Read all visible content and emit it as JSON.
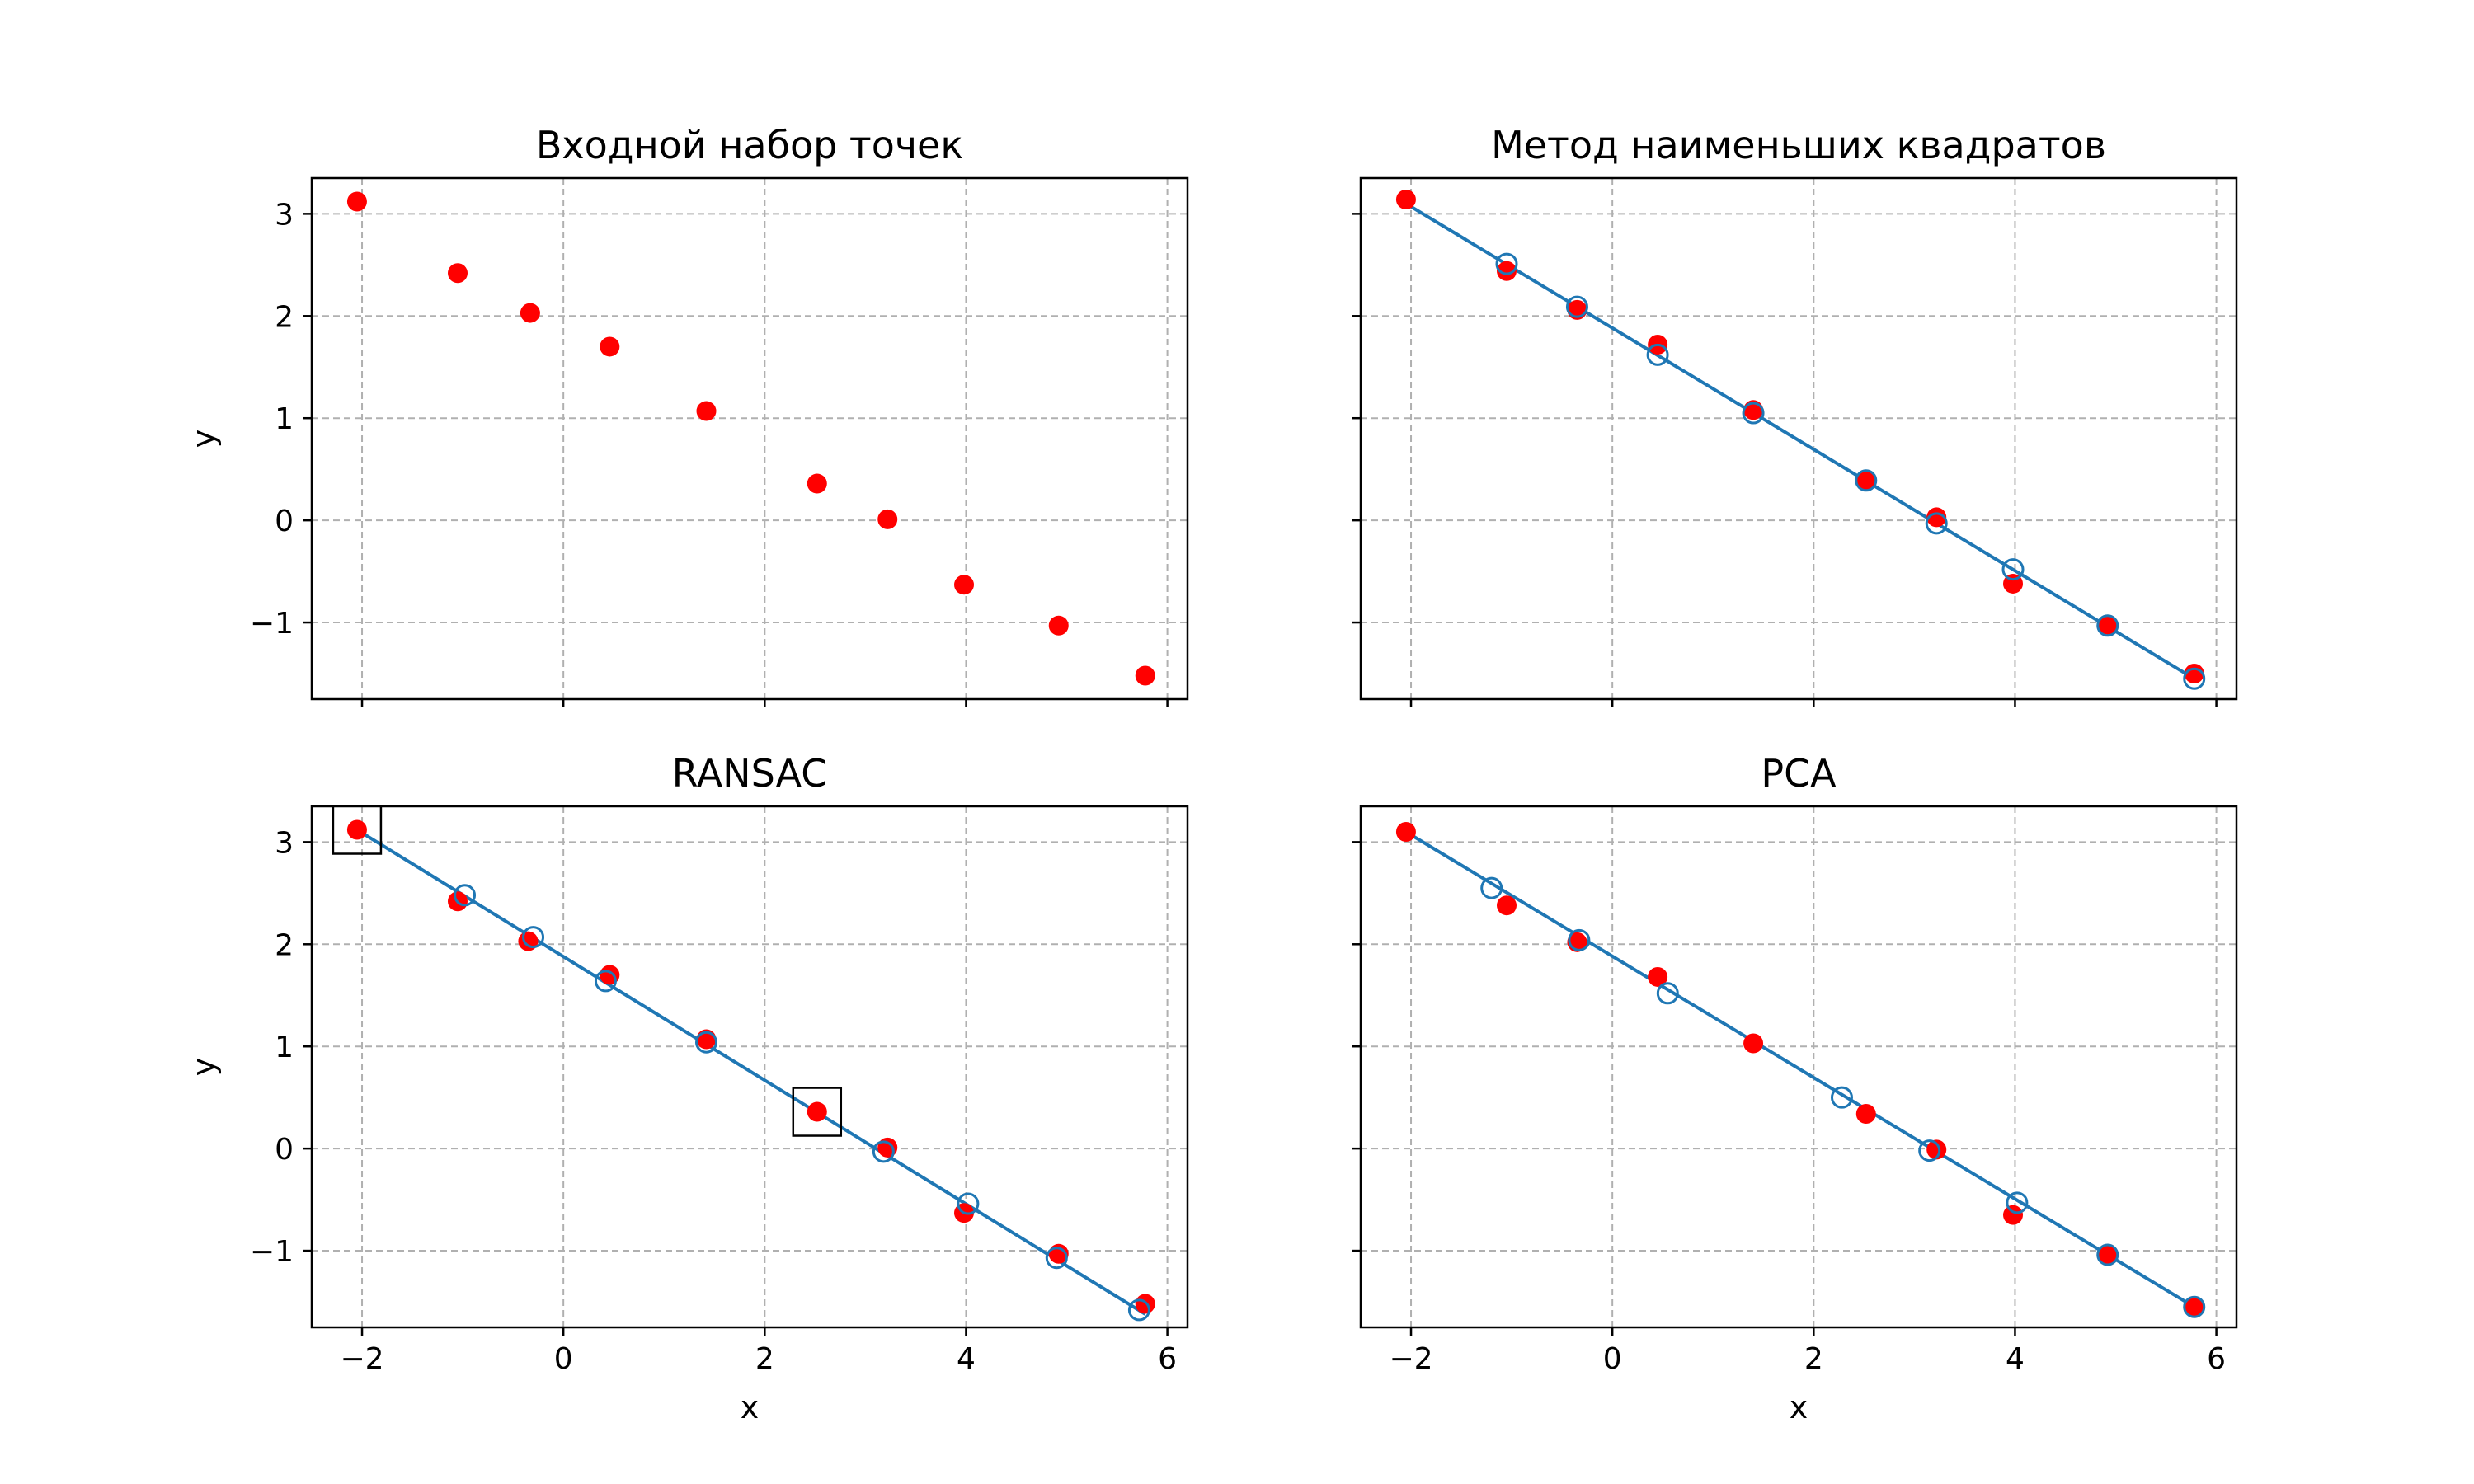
{
  "colors": {
    "points": "#ff0000",
    "fit": "#1f77b4",
    "grid": "#b0b0b0",
    "frame": "#000000"
  },
  "chart_data": [
    {
      "type": "scatter",
      "title": "Входной набор точек",
      "xlabel": "",
      "ylabel": "y",
      "xlim": [
        -2.5,
        6.2
      ],
      "ylim": [
        -1.75,
        3.35
      ],
      "xticks": [
        -2,
        0,
        2,
        4,
        6
      ],
      "xtick_labels": [
        "",
        "",
        "",
        "",
        ""
      ],
      "yticks": [
        -1,
        0,
        1,
        2,
        3
      ],
      "ytick_labels": [
        "−1",
        "0",
        "1",
        "2",
        "3"
      ],
      "grid": true,
      "points": [
        [
          -2.05,
          3.12
        ],
        [
          -1.05,
          2.42
        ],
        [
          -0.33,
          2.03
        ],
        [
          0.46,
          1.7
        ],
        [
          1.42,
          1.07
        ],
        [
          2.52,
          0.36
        ],
        [
          3.22,
          0.01
        ],
        [
          3.98,
          -0.63
        ],
        [
          4.92,
          -1.03
        ],
        [
          5.78,
          -1.52
        ]
      ],
      "line": [],
      "projections": [],
      "highlight_boxes": []
    },
    {
      "type": "scatter",
      "title": "Метод наименьших квадратов",
      "xlabel": "",
      "ylabel": "",
      "xlim": [
        -2.5,
        6.2
      ],
      "ylim": [
        -1.75,
        3.35
      ],
      "xticks": [
        -2,
        0,
        2,
        4,
        6
      ],
      "xtick_labels": [
        "",
        "",
        "",
        "",
        ""
      ],
      "yticks": [
        -1,
        0,
        1,
        2,
        3
      ],
      "ytick_labels": [
        "",
        "",
        "",
        "",
        ""
      ],
      "grid": true,
      "points": [
        [
          -2.05,
          3.14
        ],
        [
          -1.05,
          2.44
        ],
        [
          -0.35,
          2.06
        ],
        [
          0.45,
          1.72
        ],
        [
          1.4,
          1.08
        ],
        [
          2.52,
          0.38
        ],
        [
          3.22,
          0.03
        ],
        [
          3.98,
          -0.62
        ],
        [
          4.92,
          -1.02
        ],
        [
          5.78,
          -1.5
        ]
      ],
      "line": [
        [
          -2.05,
          3.1
        ],
        [
          5.78,
          -1.55
        ]
      ],
      "projections": [
        [
          -1.05,
          2.51
        ],
        [
          -0.35,
          2.09
        ],
        [
          0.45,
          1.62
        ],
        [
          1.4,
          1.05
        ],
        [
          2.52,
          0.39
        ],
        [
          3.22,
          -0.03
        ],
        [
          3.98,
          -0.48
        ],
        [
          4.92,
          -1.03
        ],
        [
          5.78,
          -1.55
        ]
      ],
      "highlight_boxes": []
    },
    {
      "type": "scatter",
      "title": "RANSAC",
      "xlabel": "x",
      "ylabel": "y",
      "xlim": [
        -2.5,
        6.2
      ],
      "ylim": [
        -1.75,
        3.35
      ],
      "xticks": [
        -2,
        0,
        2,
        4,
        6
      ],
      "xtick_labels": [
        "−2",
        "0",
        "2",
        "4",
        "6"
      ],
      "yticks": [
        -1,
        0,
        1,
        2,
        3
      ],
      "ytick_labels": [
        "−1",
        "0",
        "1",
        "2",
        "3"
      ],
      "grid": true,
      "points": [
        [
          -2.05,
          3.12
        ],
        [
          -1.05,
          2.42
        ],
        [
          -0.35,
          2.03
        ],
        [
          0.46,
          1.7
        ],
        [
          1.42,
          1.07
        ],
        [
          2.52,
          0.36
        ],
        [
          3.22,
          0.01
        ],
        [
          3.98,
          -0.63
        ],
        [
          4.92,
          -1.03
        ],
        [
          5.78,
          -1.52
        ]
      ],
      "line": [
        [
          -2.05,
          3.12
        ],
        [
          5.78,
          -1.62
        ]
      ],
      "projections": [
        [
          -0.98,
          2.48
        ],
        [
          -0.3,
          2.07
        ],
        [
          0.42,
          1.64
        ],
        [
          1.42,
          1.04
        ],
        [
          3.18,
          -0.03
        ],
        [
          4.02,
          -0.54
        ],
        [
          4.9,
          -1.07
        ],
        [
          5.72,
          -1.58
        ]
      ],
      "highlight_boxes": [
        [
          -2.05,
          3.12
        ],
        [
          2.52,
          0.36
        ]
      ]
    },
    {
      "type": "scatter",
      "title": "PCA",
      "xlabel": "x",
      "ylabel": "",
      "xlim": [
        -2.5,
        6.2
      ],
      "ylim": [
        -1.75,
        3.35
      ],
      "xticks": [
        -2,
        0,
        2,
        4,
        6
      ],
      "xtick_labels": [
        "−2",
        "0",
        "2",
        "4",
        "6"
      ],
      "yticks": [
        -1,
        0,
        1,
        2,
        3
      ],
      "ytick_labels": [
        "",
        "",
        "",
        "",
        ""
      ],
      "grid": true,
      "points": [
        [
          -2.05,
          3.1
        ],
        [
          -1.05,
          2.38
        ],
        [
          -0.35,
          2.02
        ],
        [
          0.45,
          1.68
        ],
        [
          1.4,
          1.03
        ],
        [
          2.52,
          0.34
        ],
        [
          3.22,
          -0.01
        ],
        [
          3.98,
          -0.65
        ],
        [
          4.92,
          -1.04
        ],
        [
          5.78,
          -1.55
        ]
      ],
      "line": [
        [
          -2.05,
          3.1
        ],
        [
          5.78,
          -1.55
        ]
      ],
      "projections": [
        [
          -1.2,
          2.55
        ],
        [
          -0.33,
          2.04
        ],
        [
          0.55,
          1.52
        ],
        [
          2.28,
          0.5
        ],
        [
          3.15,
          -0.02
        ],
        [
          4.02,
          -0.53
        ],
        [
          4.92,
          -1.04
        ],
        [
          5.78,
          -1.55
        ]
      ],
      "highlight_boxes": []
    }
  ]
}
